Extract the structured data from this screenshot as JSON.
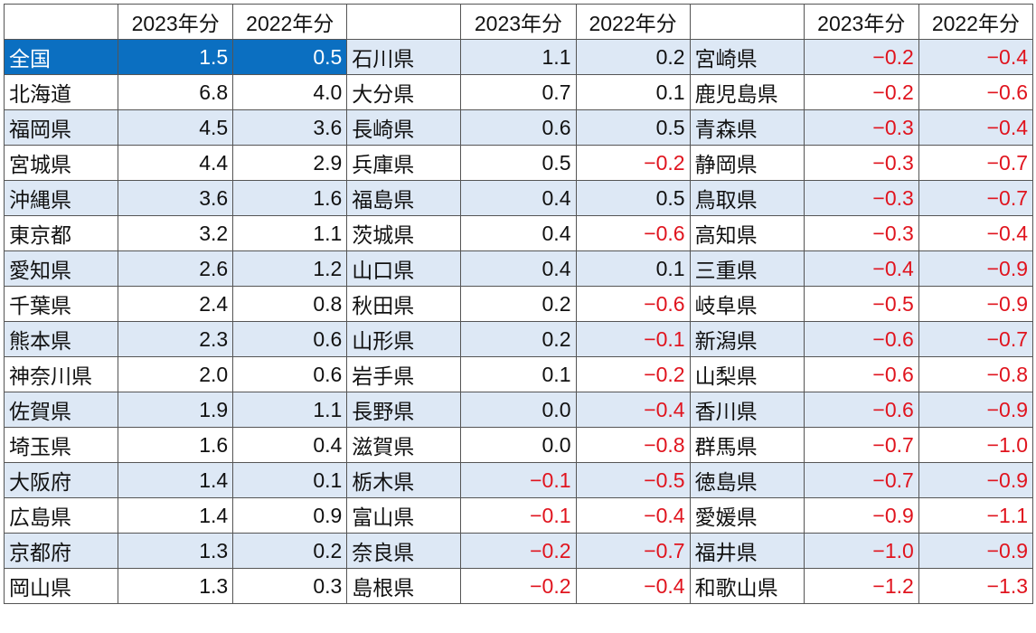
{
  "header": {
    "blank": "",
    "col_2023": "2023年分",
    "col_2022": "2022年分"
  },
  "colors": {
    "highlight_bg": "#0b6fc1",
    "shade_bg": "#dde8f5",
    "negative_text": "#e0141e"
  },
  "rows": [
    [
      {
        "name": "全国",
        "v23": "1.5",
        "v22": "0.5"
      },
      {
        "name": "石川県",
        "v23": "1.1",
        "v22": "0.2"
      },
      {
        "name": "宮崎県",
        "v23": "−0.2",
        "v22": "−0.4"
      }
    ],
    [
      {
        "name": "北海道",
        "v23": "6.8",
        "v22": "4.0"
      },
      {
        "name": "大分県",
        "v23": "0.7",
        "v22": "0.1"
      },
      {
        "name": "鹿児島県",
        "v23": "−0.2",
        "v22": "−0.6"
      }
    ],
    [
      {
        "name": "福岡県",
        "v23": "4.5",
        "v22": "3.6"
      },
      {
        "name": "長崎県",
        "v23": "0.6",
        "v22": "0.5"
      },
      {
        "name": "青森県",
        "v23": "−0.3",
        "v22": "−0.4"
      }
    ],
    [
      {
        "name": "宮城県",
        "v23": "4.4",
        "v22": "2.9"
      },
      {
        "name": "兵庫県",
        "v23": "0.5",
        "v22": "−0.2"
      },
      {
        "name": "静岡県",
        "v23": "−0.3",
        "v22": "−0.7"
      }
    ],
    [
      {
        "name": "沖縄県",
        "v23": "3.6",
        "v22": "1.6"
      },
      {
        "name": "福島県",
        "v23": "0.4",
        "v22": "0.5"
      },
      {
        "name": "鳥取県",
        "v23": "−0.3",
        "v22": "−0.7"
      }
    ],
    [
      {
        "name": "東京都",
        "v23": "3.2",
        "v22": "1.1"
      },
      {
        "name": "茨城県",
        "v23": "0.4",
        "v22": "−0.6"
      },
      {
        "name": "高知県",
        "v23": "−0.3",
        "v22": "−0.4"
      }
    ],
    [
      {
        "name": "愛知県",
        "v23": "2.6",
        "v22": "1.2"
      },
      {
        "name": "山口県",
        "v23": "0.4",
        "v22": "0.1"
      },
      {
        "name": "三重県",
        "v23": "−0.4",
        "v22": "−0.9"
      }
    ],
    [
      {
        "name": "千葉県",
        "v23": "2.4",
        "v22": "0.8"
      },
      {
        "name": "秋田県",
        "v23": "0.2",
        "v22": "−0.6"
      },
      {
        "name": "岐阜県",
        "v23": "−0.5",
        "v22": "−0.9"
      }
    ],
    [
      {
        "name": "熊本県",
        "v23": "2.3",
        "v22": "0.6"
      },
      {
        "name": "山形県",
        "v23": "0.2",
        "v22": "−0.1"
      },
      {
        "name": "新潟県",
        "v23": "−0.6",
        "v22": "−0.7"
      }
    ],
    [
      {
        "name": "神奈川県",
        "v23": "2.0",
        "v22": "0.6"
      },
      {
        "name": "岩手県",
        "v23": "0.1",
        "v22": "−0.2"
      },
      {
        "name": "山梨県",
        "v23": "−0.6",
        "v22": "−0.8"
      }
    ],
    [
      {
        "name": "佐賀県",
        "v23": "1.9",
        "v22": "1.1"
      },
      {
        "name": "長野県",
        "v23": "0.0",
        "v22": "−0.4"
      },
      {
        "name": "香川県",
        "v23": "−0.6",
        "v22": "−0.9"
      }
    ],
    [
      {
        "name": "埼玉県",
        "v23": "1.6",
        "v22": "0.4"
      },
      {
        "name": "滋賀県",
        "v23": "0.0",
        "v22": "−0.8"
      },
      {
        "name": "群馬県",
        "v23": "−0.7",
        "v22": "−1.0"
      }
    ],
    [
      {
        "name": "大阪府",
        "v23": "1.4",
        "v22": "0.1"
      },
      {
        "name": "栃木県",
        "v23": "−0.1",
        "v22": "−0.5"
      },
      {
        "name": "徳島県",
        "v23": "−0.7",
        "v22": "−0.9"
      }
    ],
    [
      {
        "name": "広島県",
        "v23": "1.4",
        "v22": "0.9"
      },
      {
        "name": "富山県",
        "v23": "−0.1",
        "v22": "−0.4"
      },
      {
        "name": "愛媛県",
        "v23": "−0.9",
        "v22": "−1.1"
      }
    ],
    [
      {
        "name": "京都府",
        "v23": "1.3",
        "v22": "0.2"
      },
      {
        "name": "奈良県",
        "v23": "−0.2",
        "v22": "−0.7"
      },
      {
        "name": "福井県",
        "v23": "−1.0",
        "v22": "−0.9"
      }
    ],
    [
      {
        "name": "岡山県",
        "v23": "1.3",
        "v22": "0.3"
      },
      {
        "name": "島根県",
        "v23": "−0.2",
        "v22": "−0.4"
      },
      {
        "name": "和歌山県",
        "v23": "−1.2",
        "v22": "−1.3"
      }
    ]
  ]
}
